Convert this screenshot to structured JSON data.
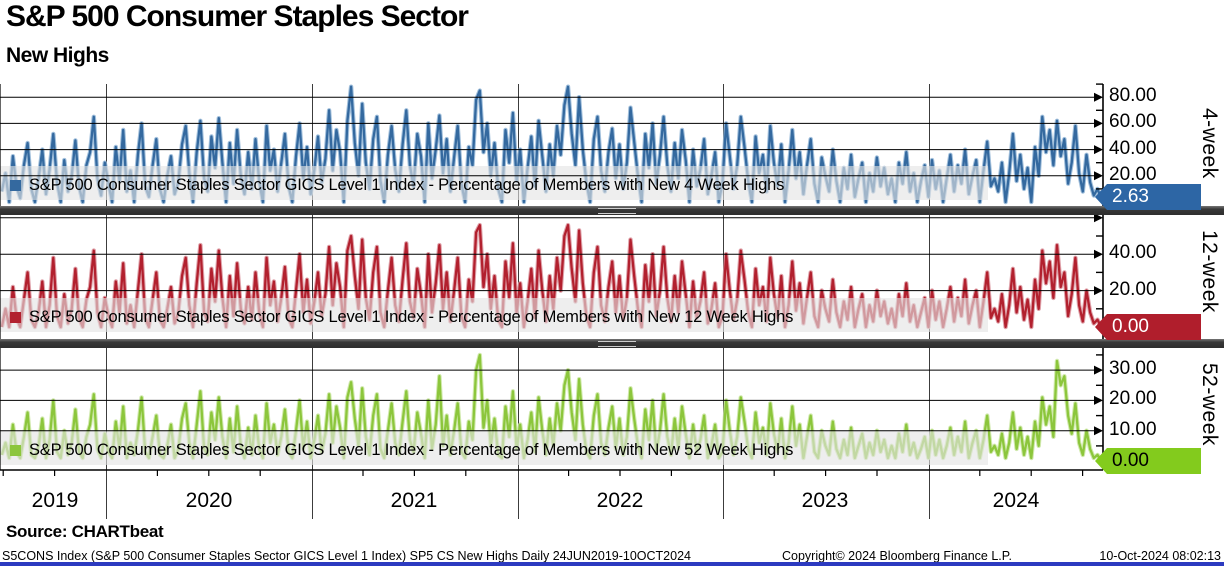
{
  "header": {
    "title": "S&P 500 Consumer Staples Sector",
    "subtitle": "New Highs"
  },
  "source_label": "Source: CHARTbeat",
  "footer": {
    "left": "S5CONS Index (S&P 500 Consumer Staples Sector GICS Level 1 Index) SP5 CS New Highs  Daily 24JUN2019-10OCT2024",
    "center": "Copyright© 2024 Bloomberg Finance L.P.",
    "right": "10-Oct-2024 08:02:13"
  },
  "chart_data": {
    "type": "line",
    "title": "S&P 500 Consumer Staples Sector New Highs",
    "x_range": [
      "24JUN2019",
      "10OCT2024"
    ],
    "x_ticks": [
      "2019",
      "2020",
      "2021",
      "2022",
      "2023",
      "2024"
    ],
    "grid": true,
    "legend_position": "inside-bottom-left",
    "panels": [
      {
        "axis_label": "4-week",
        "legend": "S&P 500 Consumer Staples Sector GICS Level 1 Index - Percentage of Members with New 4 Week Highs",
        "ylabel": "Percentage of Members with New 4 Week Highs",
        "y_ticks": [
          20,
          40,
          60,
          80
        ],
        "ylim": [
          0,
          90
        ],
        "last_value": "2.63",
        "color": "#34699f",
        "color_light": "#92b5d6",
        "badge_color": "#2d66a5",
        "badge_text_color": "#ffffff",
        "values": [
          8,
          22,
          0,
          35,
          12,
          3,
          28,
          45,
          10,
          0,
          18,
          40,
          6,
          25,
          52,
          15,
          0,
          32,
          8,
          20,
          47,
          12,
          0,
          28,
          38,
          65,
          18,
          5,
          30,
          14,
          0,
          42,
          16,
          55,
          8,
          24,
          0,
          36,
          60,
          12,
          4,
          28,
          48,
          10,
          0,
          20,
          35,
          6,
          15,
          44,
          58,
          22,
          0,
          38,
          62,
          18,
          8,
          50,
          26,
          64,
          30,
          0,
          45,
          14,
          55,
          20,
          6,
          38,
          10,
          48,
          16,
          0,
          58,
          24,
          40,
          8,
          30,
          52,
          12,
          0,
          35,
          60,
          18,
          42,
          6,
          25,
          50,
          15,
          33,
          70,
          24,
          55,
          38,
          0,
          62,
          88,
          45,
          20,
          75,
          30,
          10,
          48,
          65,
          16,
          0,
          36,
          58,
          25,
          8,
          44,
          70,
          28,
          12,
          52,
          35,
          0,
          60,
          18,
          40,
          66,
          22,
          48,
          8,
          34,
          58,
          14,
          0,
          42,
          28,
          78,
          85,
          38,
          60,
          20,
          45,
          10,
          0,
          55,
          30,
          68,
          16,
          40,
          0,
          26,
          50,
          12,
          62,
          35,
          8,
          44,
          20,
          58,
          36,
          74,
          88,
          52,
          28,
          80,
          40,
          15,
          0,
          48,
          65,
          24,
          8,
          38,
          56,
          18,
          44,
          10,
          30,
          72,
          46,
          20,
          0,
          52,
          26,
          60,
          14,
          36,
          65,
          28,
          8,
          45,
          18,
          55,
          32,
          0,
          40,
          12,
          25,
          48,
          6,
          20,
          38,
          0,
          15,
          60,
          35,
          10,
          28,
          65,
          42,
          16,
          0,
          50,
          22,
          36,
          8,
          58,
          30,
          12,
          44,
          0,
          24,
          55,
          18,
          38,
          6,
          28,
          48,
          14,
          0,
          34,
          20,
          8,
          40,
          16,
          0,
          26,
          10,
          36,
          4,
          18,
          30,
          0,
          22,
          8,
          34,
          12,
          26,
          6,
          18,
          0,
          30,
          14,
          38,
          8,
          22,
          0,
          16,
          28,
          4,
          32,
          10,
          24,
          0,
          18,
          36,
          8,
          28,
          14,
          40,
          6,
          20,
          32,
          0,
          24,
          46,
          12,
          18,
          8,
          30,
          0,
          22,
          52,
          16,
          36,
          10,
          26,
          0,
          42,
          20,
          65,
          38,
          55,
          28,
          62,
          35,
          48,
          14,
          30,
          58,
          22,
          8,
          36,
          15,
          5,
          10,
          2.6
        ]
      },
      {
        "axis_label": "12-week",
        "legend": "S&P 500 Consumer Staples Sector GICS Level 1 Index - Percentage of Members with New 12 Week Highs",
        "ylabel": "Percentage of Members with New 12 Week Highs",
        "y_ticks": [
          20,
          40
        ],
        "ylim": [
          0,
          61
        ],
        "last_value": "0.00",
        "color": "#b2202e",
        "color_light": "#d9929b",
        "badge_color": "#b01e2c",
        "badge_text_color": "#ffffff",
        "values": [
          0,
          10,
          0,
          22,
          5,
          0,
          15,
          30,
          4,
          0,
          8,
          25,
          0,
          12,
          38,
          6,
          0,
          18,
          2,
          10,
          32,
          5,
          0,
          15,
          22,
          42,
          8,
          0,
          16,
          6,
          0,
          25,
          8,
          35,
          2,
          12,
          0,
          20,
          40,
          5,
          0,
          15,
          30,
          4,
          0,
          10,
          22,
          2,
          8,
          28,
          38,
          12,
          0,
          24,
          45,
          8,
          3,
          32,
          14,
          42,
          16,
          0,
          28,
          6,
          35,
          10,
          2,
          22,
          4,
          30,
          8,
          0,
          38,
          12,
          25,
          3,
          16,
          33,
          5,
          0,
          20,
          40,
          8,
          26,
          2,
          14,
          30,
          6,
          18,
          44,
          12,
          35,
          22,
          0,
          42,
          50,
          28,
          10,
          48,
          16,
          4,
          30,
          44,
          8,
          0,
          20,
          38,
          12,
          3,
          26,
          46,
          14,
          5,
          32,
          18,
          0,
          40,
          8,
          24,
          45,
          10,
          30,
          3,
          20,
          38,
          6,
          0,
          26,
          14,
          52,
          56,
          22,
          40,
          10,
          28,
          4,
          0,
          36,
          16,
          46,
          8,
          24,
          0,
          14,
          32,
          5,
          42,
          20,
          3,
          28,
          10,
          38,
          20,
          50,
          56,
          32,
          14,
          53,
          24,
          6,
          0,
          30,
          44,
          12,
          3,
          22,
          36,
          8,
          28,
          4,
          16,
          48,
          28,
          10,
          0,
          34,
          14,
          40,
          6,
          20,
          44,
          16,
          3,
          28,
          8,
          36,
          18,
          0,
          25,
          5,
          14,
          30,
          2,
          10,
          24,
          0,
          6,
          40,
          20,
          4,
          15,
          42,
          26,
          8,
          0,
          32,
          12,
          22,
          3,
          38,
          18,
          5,
          28,
          0,
          12,
          36,
          9,
          24,
          2,
          16,
          30,
          6,
          0,
          20,
          10,
          3,
          26,
          8,
          0,
          14,
          4,
          22,
          0,
          10,
          18,
          0,
          12,
          3,
          20,
          6,
          14,
          2,
          10,
          0,
          18,
          6,
          24,
          3,
          12,
          0,
          8,
          16,
          0,
          20,
          4,
          14,
          0,
          10,
          22,
          3,
          16,
          6,
          26,
          2,
          12,
          20,
          0,
          14,
          30,
          5,
          10,
          3,
          18,
          0,
          12,
          32,
          8,
          22,
          4,
          15,
          0,
          26,
          10,
          42,
          24,
          36,
          16,
          45,
          22,
          30,
          6,
          18,
          38,
          12,
          3,
          20,
          8,
          2,
          4,
          0
        ]
      },
      {
        "axis_label": "52-week",
        "legend": "S&P 500 Consumer Staples Sector GICS Level 1 Index - Percentage of Members with New 52 Week Highs",
        "ylabel": "Percentage of Members with New 52 Week Highs",
        "y_ticks": [
          10,
          20,
          30
        ],
        "ylim": [
          0,
          37
        ],
        "last_value": "0.00",
        "color": "#8cc63c",
        "color_light": "#c8e59e",
        "badge_color": "#83cb1d",
        "badge_text_color": "#000000",
        "values": [
          2,
          6,
          1,
          12,
          3,
          1,
          8,
          16,
          2,
          1,
          5,
          14,
          1,
          7,
          20,
          3,
          1,
          10,
          2,
          6,
          17,
          3,
          1,
          8,
          12,
          22,
          4,
          1,
          9,
          3,
          1,
          13,
          4,
          18,
          1,
          6,
          2,
          10,
          21,
          3,
          1,
          8,
          15,
          2,
          1,
          5,
          12,
          1,
          4,
          14,
          19,
          6,
          1,
          12,
          23,
          4,
          2,
          16,
          7,
          21,
          8,
          1,
          14,
          3,
          18,
          5,
          1,
          11,
          2,
          15,
          4,
          1,
          19,
          6,
          12,
          2,
          8,
          17,
          3,
          1,
          10,
          20,
          4,
          13,
          1,
          7,
          15,
          3,
          9,
          22,
          6,
          18,
          11,
          1,
          21,
          26,
          14,
          5,
          24,
          8,
          2,
          15,
          22,
          4,
          1,
          10,
          19,
          6,
          2,
          13,
          23,
          7,
          3,
          16,
          9,
          1,
          20,
          4,
          12,
          28,
          5,
          15,
          2,
          10,
          19,
          3,
          1,
          13,
          7,
          30,
          35,
          11,
          20,
          5,
          14,
          2,
          1,
          18,
          8,
          23,
          4,
          12,
          1,
          7,
          16,
          3,
          21,
          10,
          2,
          14,
          5,
          19,
          10,
          25,
          30,
          16,
          7,
          27,
          12,
          3,
          1,
          15,
          22,
          6,
          2,
          11,
          18,
          4,
          14,
          2,
          8,
          24,
          14,
          5,
          1,
          17,
          7,
          20,
          3,
          10,
          22,
          8,
          2,
          14,
          4,
          18,
          9,
          1,
          12,
          3,
          7,
          15,
          1,
          5,
          12,
          1,
          3,
          20,
          10,
          2,
          8,
          21,
          13,
          4,
          1,
          16,
          6,
          11,
          2,
          19,
          9,
          3,
          14,
          1,
          6,
          18,
          5,
          12,
          1,
          8,
          15,
          3,
          1,
          10,
          5,
          2,
          13,
          4,
          1,
          7,
          2,
          11,
          1,
          5,
          9,
          1,
          6,
          2,
          10,
          3,
          7,
          1,
          5,
          1,
          9,
          3,
          12,
          2,
          6,
          1,
          4,
          8,
          1,
          10,
          2,
          7,
          1,
          5,
          11,
          2,
          8,
          3,
          13,
          1,
          6,
          10,
          1,
          7,
          15,
          3,
          5,
          2,
          9,
          1,
          6,
          16,
          4,
          11,
          2,
          8,
          1,
          13,
          5,
          21,
          12,
          18,
          8,
          33,
          25,
          28,
          15,
          9,
          19,
          6,
          2,
          10,
          4,
          1,
          2,
          0
        ]
      }
    ]
  }
}
